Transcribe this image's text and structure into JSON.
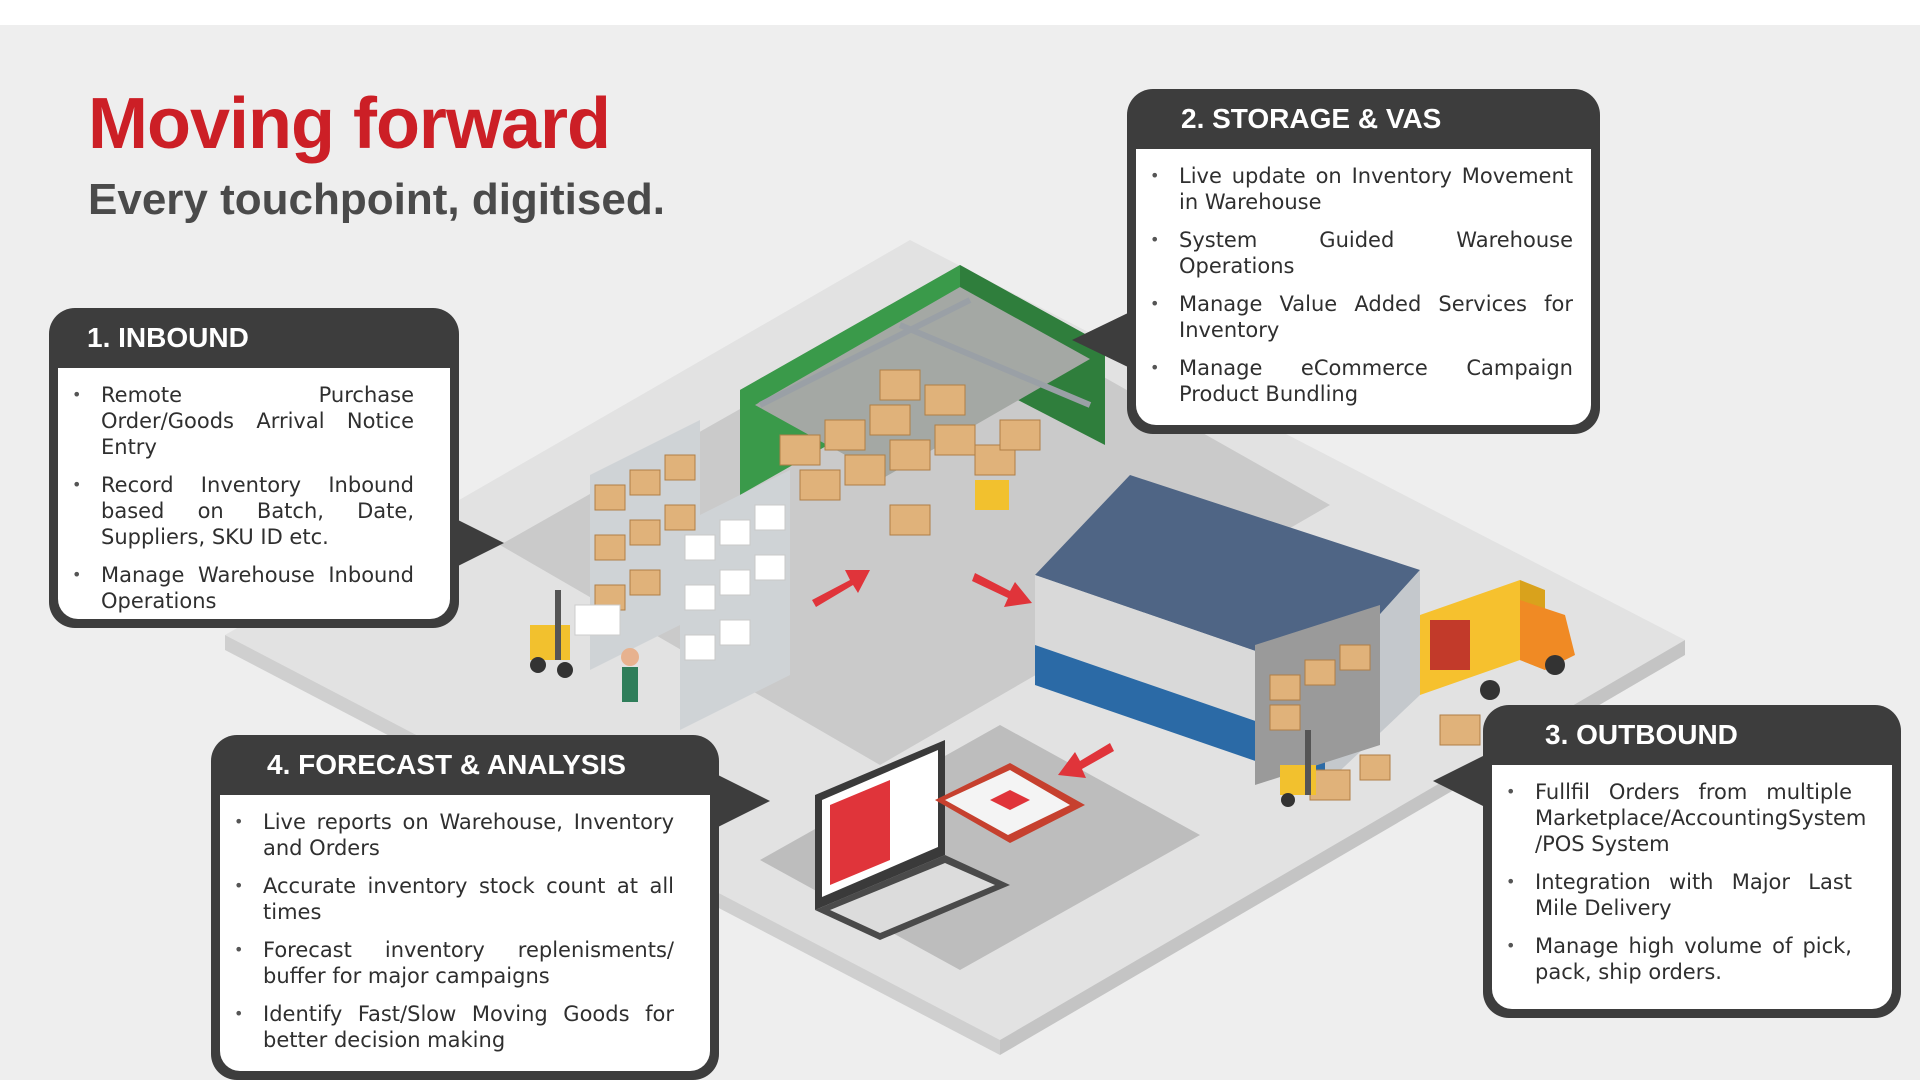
{
  "header": {
    "title": "Moving forward",
    "subtitle": "Every touchpoint, digitised."
  },
  "cards": {
    "inbound": {
      "heading": "1. INBOUND",
      "items": [
        "Remote Purchase Order/Goods Arrival Notice Entry",
        "Record Inventory Inbound based on Batch, Date, Suppliers, SKU ID etc.",
        "Manage Warehouse Inbound Operations"
      ]
    },
    "storage": {
      "heading": "2. STORAGE & VAS",
      "items": [
        "Live update on Inventory Movement in Warehouse",
        "System Guided Warehouse Operations",
        "Manage Value Added Services for Inventory",
        "Manage eCommerce Campaign Product Bundling"
      ]
    },
    "outbound": {
      "heading": "3. OUTBOUND",
      "items": [
        "Fullfil Orders from multiple Marketplace/AccountingSystem /POS System",
        "Integration with Major Last Mile Delivery",
        "Manage high volume of pick, pack, ship orders."
      ]
    },
    "forecast": {
      "heading": "4. FORECAST & ANALYSIS",
      "items": [
        "Live reports on Warehouse, Inventory and Orders",
        "Accurate inventory stock count at all times",
        "Forecast inventory replenisments/ buffer for major campaigns",
        "Identify Fast/Slow Moving Goods for better decision making"
      ]
    }
  },
  "bullet_symbol": "•",
  "colors": {
    "title_red": "#cc1f26",
    "card_dark": "#3d3d3d",
    "warehouse_green": "#3a9a4a",
    "roof_blue": "#4f6585",
    "truck_yellow": "#f6c12e",
    "arrow_red": "#e0343a"
  }
}
